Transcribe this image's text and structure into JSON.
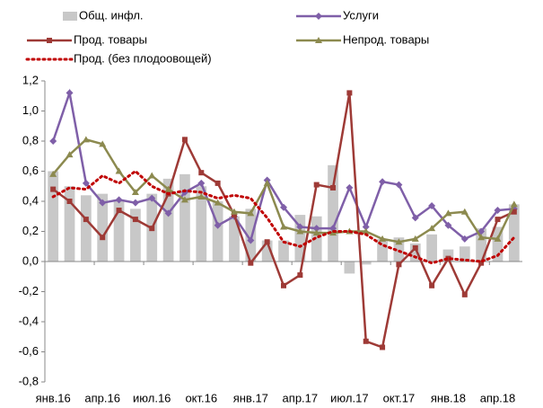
{
  "chart_data": {
    "type": "bar_line",
    "categories": [
      "янв.16",
      null,
      null,
      "апр.16",
      null,
      null,
      "июл.16",
      null,
      null,
      "окт.16",
      null,
      null,
      "янв.17",
      null,
      null,
      "апр.17",
      null,
      null,
      "июл.17",
      null,
      null,
      "окт.17",
      null,
      null,
      "янв.18",
      null,
      null,
      "апр.18",
      null
    ],
    "series": [
      {
        "name": "Общ. инфл.",
        "kind": "bar",
        "color": "#c8c8c8",
        "values": [
          0.6,
          0.5,
          0.44,
          0.45,
          0.4,
          0.35,
          0.45,
          0.55,
          0.58,
          0.5,
          0.4,
          0.3,
          0.35,
          0.14,
          0.14,
          0.31,
          0.3,
          0.64,
          -0.08,
          -0.02,
          0.15,
          0.16,
          0.12,
          0.18,
          0.08,
          0.1,
          0.22,
          0.23,
          0.38
        ]
      },
      {
        "name": "Услуги",
        "kind": "line",
        "marker": "diamond",
        "color": "#7f5fa8",
        "values": [
          0.8,
          1.12,
          0.52,
          0.39,
          0.41,
          0.39,
          0.42,
          0.32,
          0.46,
          0.52,
          0.24,
          0.3,
          0.14,
          0.54,
          0.36,
          0.23,
          0.22,
          0.22,
          0.49,
          0.23,
          0.53,
          0.51,
          0.29,
          0.37,
          0.24,
          0.15,
          0.2,
          0.34,
          0.35
        ]
      },
      {
        "name": "Прод. товары",
        "kind": "line",
        "marker": "square",
        "color": "#9e3a36",
        "values": [
          0.48,
          0.4,
          0.28,
          0.16,
          0.34,
          0.28,
          0.22,
          0.45,
          0.81,
          0.59,
          0.52,
          0.31,
          -0.01,
          0.13,
          -0.16,
          -0.09,
          0.51,
          0.49,
          1.12,
          -0.53,
          -0.57,
          -0.02,
          0.09,
          -0.16,
          0.02,
          -0.22,
          -0.01,
          0.28,
          0.33
        ]
      },
      {
        "name": "Непрод. товары",
        "kind": "line",
        "marker": "triangle",
        "color": "#8c8a4f",
        "values": [
          0.58,
          0.71,
          0.81,
          0.78,
          0.6,
          0.46,
          0.57,
          0.48,
          0.41,
          0.43,
          0.39,
          0.33,
          0.32,
          0.52,
          0.23,
          0.2,
          0.19,
          0.19,
          0.2,
          0.2,
          0.15,
          0.13,
          0.15,
          0.22,
          0.32,
          0.33,
          0.16,
          0.15,
          0.38
        ]
      },
      {
        "name": "Прод. (без плодоовощей)",
        "kind": "line",
        "dotted": true,
        "color": "#c00000",
        "values": [
          0.43,
          0.49,
          0.48,
          0.57,
          0.52,
          0.6,
          0.5,
          0.45,
          0.47,
          0.46,
          0.42,
          0.44,
          0.42,
          0.29,
          0.13,
          0.1,
          0.16,
          0.2,
          0.2,
          0.18,
          0.11,
          0.07,
          0.03,
          -0.01,
          0.02,
          0.01,
          0.0,
          0.04,
          0.16
        ]
      }
    ],
    "ylim": [
      -0.8,
      1.2
    ],
    "yticks": [
      {
        "value": 1.2,
        "label": "1,2"
      },
      {
        "value": 1.0,
        "label": "1,0"
      },
      {
        "value": 0.8,
        "label": "0,8"
      },
      {
        "value": 0.6,
        "label": "0,6"
      },
      {
        "value": 0.4,
        "label": "0,4"
      },
      {
        "value": 0.2,
        "label": "0,2"
      },
      {
        "value": 0,
        "label": "0,0"
      },
      {
        "value": -0.2,
        "label": "-0,2"
      },
      {
        "value": -0.4,
        "label": "-0,4"
      },
      {
        "value": -0.6,
        "label": "-0,6"
      },
      {
        "value": -0.8,
        "label": "-0,8"
      }
    ],
    "grid": false
  }
}
